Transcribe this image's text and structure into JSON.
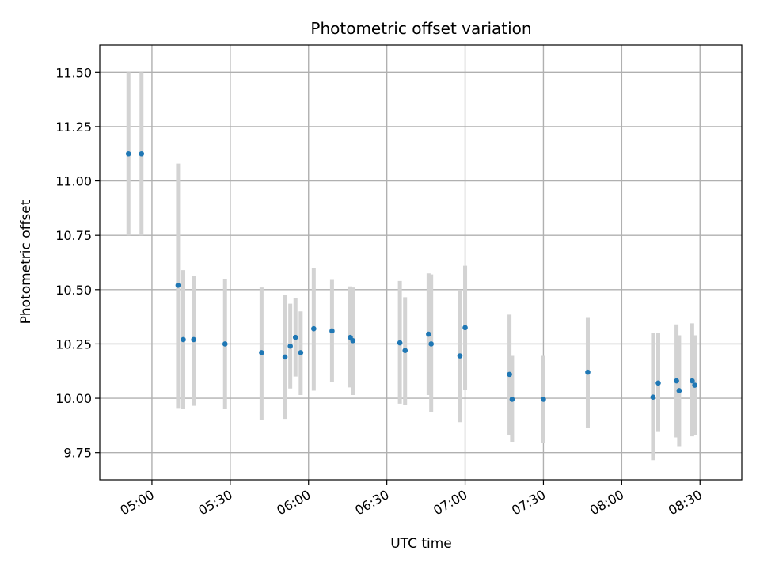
{
  "chart_data": {
    "type": "scatter",
    "title": "Photometric offset variation",
    "xlabel": "UTC time",
    "ylabel": "Photometric offset",
    "grid": true,
    "xlim": [
      "04:40",
      "08:46"
    ],
    "ylim": [
      9.625,
      11.625
    ],
    "xticks": [
      "05:00",
      "05:30",
      "06:00",
      "06:30",
      "07:00",
      "07:30",
      "08:00",
      "08:30"
    ],
    "yticks": [
      "9.75",
      "10.00",
      "10.25",
      "10.50",
      "10.75",
      "11.00",
      "11.25",
      "11.50"
    ],
    "colors": {
      "point": "#1f77b4",
      "errorbar": "#d3d3d3"
    },
    "points": [
      {
        "x": "04:51",
        "y": 11.125,
        "ylow": 10.75,
        "yhigh": 11.5
      },
      {
        "x": "04:56",
        "y": 11.125,
        "ylow": 10.75,
        "yhigh": 11.5
      },
      {
        "x": "05:10",
        "y": 10.52,
        "ylow": 9.955,
        "yhigh": 11.08
      },
      {
        "x": "05:12",
        "y": 10.27,
        "ylow": 9.95,
        "yhigh": 10.59
      },
      {
        "x": "05:16",
        "y": 10.27,
        "ylow": 9.965,
        "yhigh": 10.565
      },
      {
        "x": "05:28",
        "y": 10.25,
        "ylow": 9.95,
        "yhigh": 10.55
      },
      {
        "x": "05:42",
        "y": 10.21,
        "ylow": 9.9,
        "yhigh": 10.51
      },
      {
        "x": "05:51",
        "y": 10.19,
        "ylow": 9.905,
        "yhigh": 10.475
      },
      {
        "x": "05:53",
        "y": 10.24,
        "ylow": 10.045,
        "yhigh": 10.435
      },
      {
        "x": "05:55",
        "y": 10.28,
        "ylow": 10.1,
        "yhigh": 10.46
      },
      {
        "x": "05:57",
        "y": 10.21,
        "ylow": 10.015,
        "yhigh": 10.4
      },
      {
        "x": "06:02",
        "y": 10.32,
        "ylow": 10.035,
        "yhigh": 10.6
      },
      {
        "x": "06:09",
        "y": 10.31,
        "ylow": 10.075,
        "yhigh": 10.545
      },
      {
        "x": "06:16",
        "y": 10.28,
        "ylow": 10.05,
        "yhigh": 10.515
      },
      {
        "x": "06:17",
        "y": 10.265,
        "ylow": 10.015,
        "yhigh": 10.51
      },
      {
        "x": "06:35",
        "y": 10.255,
        "ylow": 9.975,
        "yhigh": 10.54
      },
      {
        "x": "06:37",
        "y": 10.22,
        "ylow": 9.97,
        "yhigh": 10.465
      },
      {
        "x": "06:46",
        "y": 10.295,
        "ylow": 10.015,
        "yhigh": 10.575
      },
      {
        "x": "06:47",
        "y": 10.25,
        "ylow": 9.935,
        "yhigh": 10.57
      },
      {
        "x": "06:58",
        "y": 10.195,
        "ylow": 9.89,
        "yhigh": 10.5
      },
      {
        "x": "07:00",
        "y": 10.325,
        "ylow": 10.04,
        "yhigh": 10.61
      },
      {
        "x": "07:17",
        "y": 10.11,
        "ylow": 9.83,
        "yhigh": 10.385
      },
      {
        "x": "07:18",
        "y": 9.995,
        "ylow": 9.8,
        "yhigh": 10.195
      },
      {
        "x": "07:30",
        "y": 9.995,
        "ylow": 9.795,
        "yhigh": 10.195
      },
      {
        "x": "07:47",
        "y": 10.12,
        "ylow": 9.865,
        "yhigh": 10.37
      },
      {
        "x": "08:12",
        "y": 10.005,
        "ylow": 9.715,
        "yhigh": 10.3
      },
      {
        "x": "08:14",
        "y": 10.07,
        "ylow": 9.845,
        "yhigh": 10.3
      },
      {
        "x": "08:21",
        "y": 10.08,
        "ylow": 9.82,
        "yhigh": 10.34
      },
      {
        "x": "08:22",
        "y": 10.035,
        "ylow": 9.78,
        "yhigh": 10.29
      },
      {
        "x": "08:27",
        "y": 10.08,
        "ylow": 9.825,
        "yhigh": 10.345
      },
      {
        "x": "08:28",
        "y": 10.06,
        "ylow": 9.83,
        "yhigh": 10.29
      }
    ]
  }
}
